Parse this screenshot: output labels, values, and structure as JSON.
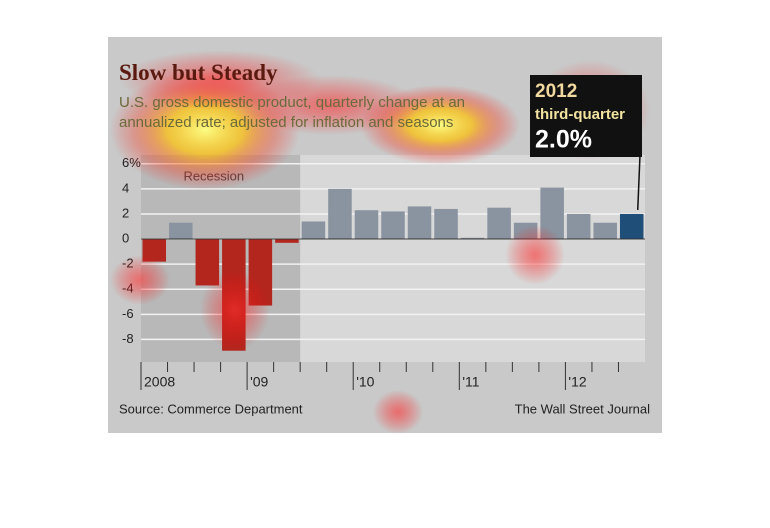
{
  "chart_data": {
    "type": "bar",
    "title": "Slow but Steady",
    "subtitle": "U.S. gross domestic product, quarterly change at an annualized rate; adjusted for inflation and seasons",
    "categories": [
      "2008",
      null,
      null,
      null,
      "'09",
      null,
      null,
      null,
      "'10",
      null,
      null,
      null,
      "'11",
      null,
      null,
      null,
      "'12",
      null,
      null
    ],
    "values": [
      -1.8,
      1.3,
      -3.7,
      -8.9,
      -5.3,
      -0.3,
      1.4,
      4.0,
      2.3,
      2.2,
      2.6,
      2.4,
      0.1,
      2.5,
      1.3,
      4.1,
      2.0,
      1.3,
      2.0
    ],
    "colors": [
      "#b3261e",
      "#8a93a0",
      "#b3261e",
      "#b3261e",
      "#b3261e",
      "#b3261e",
      "#8a93a0",
      "#8a93a0",
      "#8a93a0",
      "#8a93a0",
      "#8a93a0",
      "#8a93a0",
      "#8a93a0",
      "#8a93a0",
      "#8a93a0",
      "#8a93a0",
      "#8a93a0",
      "#8a93a0",
      "#1f4e79"
    ],
    "ylim": [
      -9.8,
      6.7
    ],
    "yticks": [
      {
        "value": 6,
        "label": "6%"
      },
      4,
      2,
      0,
      -2,
      -4,
      -6,
      -8
    ],
    "grid": true,
    "recession_label": "Recession",
    "callout": {
      "year": "2012",
      "label": "third-quarter",
      "value_text": "2.0%"
    },
    "source": "Source: Commerce Department",
    "credit": "The Wall Street Journal"
  }
}
